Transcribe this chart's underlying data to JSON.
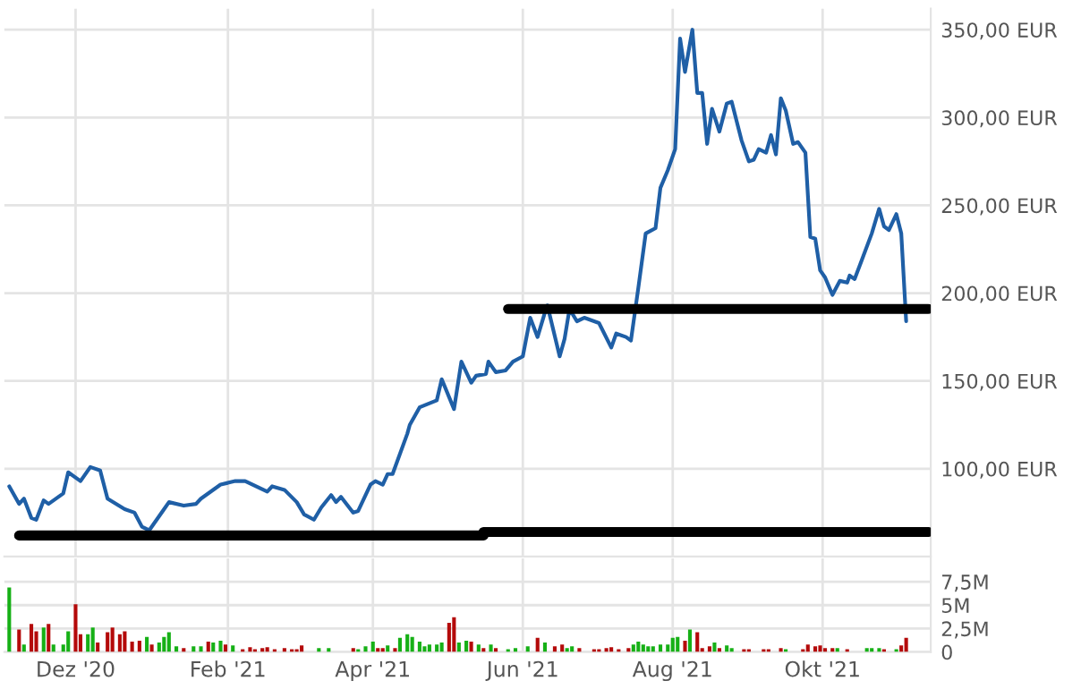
{
  "chart_data": [
    {
      "type": "line",
      "x": [
        "2020-11-04",
        "2020-11-08",
        "2020-11-10",
        "2020-11-13",
        "2020-11-15",
        "2020-11-18",
        "2020-11-20",
        "2020-11-26",
        "2020-11-28",
        "2020-12-03",
        "2020-12-07",
        "2020-12-11",
        "2020-12-14",
        "2020-12-21",
        "2020-12-25",
        "2020-12-28",
        "2020-12-31",
        "2021-01-06",
        "2021-01-08",
        "2021-01-14",
        "2021-01-19",
        "2021-01-21",
        "2021-01-29",
        "2021-02-04",
        "2021-02-08",
        "2021-02-17",
        "2021-02-19",
        "2021-02-24",
        "2021-03-01",
        "2021-03-04",
        "2021-03-08",
        "2021-03-11",
        "2021-03-15",
        "2021-03-17",
        "2021-03-19",
        "2021-03-24",
        "2021-03-26",
        "2021-03-31",
        "2021-04-02",
        "2021-04-05",
        "2021-04-07",
        "2021-04-09",
        "2021-04-15",
        "2021-04-16",
        "2021-04-20",
        "2021-04-27",
        "2021-04-29",
        "2021-05-04",
        "2021-05-07",
        "2021-05-11",
        "2021-05-13",
        "2021-05-17",
        "2021-05-18",
        "2021-05-21",
        "2021-05-25",
        "2021-05-28",
        "2021-06-01",
        "2021-06-04",
        "2021-06-07",
        "2021-06-10",
        "2021-06-11",
        "2021-06-16",
        "2021-06-18",
        "2021-06-20",
        "2021-06-23",
        "2021-06-26",
        "2021-07-02",
        "2021-07-07",
        "2021-07-09",
        "2021-07-13",
        "2021-07-15",
        "2021-07-18",
        "2021-07-21",
        "2021-07-25",
        "2021-07-27",
        "2021-07-30",
        "2021-08-02",
        "2021-08-04",
        "2021-08-06",
        "2021-08-09",
        "2021-08-11",
        "2021-08-13",
        "2021-08-15",
        "2021-08-17",
        "2021-08-20",
        "2021-08-23",
        "2021-08-25",
        "2021-08-29",
        "2021-09-01",
        "2021-09-03",
        "2021-09-05",
        "2021-09-08",
        "2021-09-10",
        "2021-09-12",
        "2021-09-14",
        "2021-09-16",
        "2021-09-19",
        "2021-09-21",
        "2021-09-24",
        "2021-09-26",
        "2021-09-28",
        "2021-09-30",
        "2021-10-02",
        "2021-10-05",
        "2021-10-08",
        "2021-10-11",
        "2021-10-12",
        "2021-10-14",
        "2021-10-17",
        "2021-10-21",
        "2021-10-24",
        "2021-10-26",
        "2021-10-28",
        "2021-10-31",
        "2021-11-02",
        "2021-11-04"
      ],
      "series": [
        {
          "color": "#1f5fa6",
          "values": [
            90,
            80,
            83,
            72,
            71,
            82,
            80,
            86,
            98,
            93,
            101,
            99,
            83,
            77,
            75,
            67,
            65,
            77,
            81,
            79,
            80,
            83,
            91,
            93,
            93,
            87,
            90,
            88,
            81,
            74,
            71,
            78,
            85,
            81,
            84,
            75,
            76,
            91,
            93,
            91,
            97,
            97,
            120,
            125,
            135,
            139,
            151,
            134,
            161,
            149,
            153,
            154,
            161,
            155,
            156,
            161,
            164,
            186,
            175,
            189,
            193,
            164,
            174,
            191,
            184,
            186,
            183,
            169,
            177,
            175,
            173,
            203,
            234,
            237,
            260,
            270,
            282,
            345,
            326,
            350,
            314,
            314,
            285,
            305,
            292,
            308,
            309,
            287,
            275,
            276,
            282,
            280,
            290,
            279,
            311,
            304,
            285,
            286,
            280,
            232,
            231,
            213,
            209,
            199,
            207,
            206,
            210,
            208,
            219,
            234,
            248,
            238,
            236,
            245,
            234,
            184
          ]
        },
        {
          "color": "#000000",
          "x": [
            "2021-05-26",
            "2021-11-13"
          ],
          "values": [
            191,
            191
          ]
        },
        {
          "color": "#000000",
          "x": [
            "2020-11-08",
            "2021-05-16",
            "2021-05-16",
            "2021-11-13"
          ],
          "values": [
            62,
            62,
            64,
            64
          ]
        }
      ],
      "xlim": [
        "2020-11-02",
        "2021-11-14"
      ],
      "xticks": [
        {
          "value": "2020-12-01",
          "label": null
        },
        {
          "value": "2021-02-01",
          "label": null
        },
        {
          "value": "2021-04-01",
          "label": null
        },
        {
          "value": "2021-06-01",
          "label": null
        },
        {
          "value": "2021-08-01",
          "label": null
        },
        {
          "value": "2021-10-01",
          "label": null
        }
      ],
      "ylim": [
        50,
        362
      ],
      "yticks": [
        {
          "value": 100,
          "label": "100,00 EUR"
        },
        {
          "value": 150,
          "label": "150,00 EUR"
        },
        {
          "value": 200,
          "label": "200,00 EUR"
        },
        {
          "value": 250,
          "label": "250,00 EUR"
        },
        {
          "value": 300,
          "label": "300,00 EUR"
        },
        {
          "value": 350,
          "label": "350,00 EUR"
        }
      ],
      "grid": true,
      "tick_labels": "y"
    },
    {
      "type": "bar",
      "x": [
        "2020-11-04",
        "2020-11-08",
        "2020-11-10",
        "2020-11-13",
        "2020-11-15",
        "2020-11-18",
        "2020-11-20",
        "2020-11-22",
        "2020-11-26",
        "2020-11-28",
        "2020-12-01",
        "2020-12-03",
        "2020-12-06",
        "2020-12-08",
        "2020-12-10",
        "2020-12-14",
        "2020-12-16",
        "2020-12-19",
        "2020-12-21",
        "2020-12-24",
        "2020-12-27",
        "2020-12-30",
        "2021-01-01",
        "2021-01-04",
        "2021-01-06",
        "2021-01-08",
        "2021-01-11",
        "2021-01-14",
        "2021-01-18",
        "2021-01-21",
        "2021-01-24",
        "2021-01-26",
        "2021-01-29",
        "2021-01-31",
        "2021-02-03",
        "2021-02-07",
        "2021-02-10",
        "2021-02-12",
        "2021-02-15",
        "2021-02-17",
        "2021-02-20",
        "2021-02-24",
        "2021-02-27",
        "2021-03-01",
        "2021-03-03",
        "2021-03-10",
        "2021-03-14",
        "2021-03-24",
        "2021-03-26",
        "2021-03-29",
        "2021-04-01",
        "2021-04-03",
        "2021-04-05",
        "2021-04-07",
        "2021-04-10",
        "2021-04-12",
        "2021-04-15",
        "2021-04-17",
        "2021-04-20",
        "2021-04-22",
        "2021-04-24",
        "2021-04-27",
        "2021-04-29",
        "2021-05-02",
        "2021-05-04",
        "2021-05-06",
        "2021-05-09",
        "2021-05-11",
        "2021-05-14",
        "2021-05-16",
        "2021-05-19",
        "2021-05-21",
        "2021-05-26",
        "2021-05-29",
        "2021-06-03",
        "2021-06-07",
        "2021-06-10",
        "2021-06-14",
        "2021-06-17",
        "2021-06-19",
        "2021-06-21",
        "2021-06-24",
        "2021-06-30",
        "2021-07-02",
        "2021-07-05",
        "2021-07-07",
        "2021-07-10",
        "2021-07-14",
        "2021-07-16",
        "2021-07-18",
        "2021-07-20",
        "2021-07-22",
        "2021-07-24",
        "2021-07-27",
        "2021-07-30",
        "2021-08-01",
        "2021-08-03",
        "2021-08-06",
        "2021-08-08",
        "2021-08-11",
        "2021-08-13",
        "2021-08-16",
        "2021-08-18",
        "2021-08-20",
        "2021-08-23",
        "2021-08-25",
        "2021-08-30",
        "2021-09-01",
        "2021-09-07",
        "2021-09-09",
        "2021-09-14",
        "2021-09-16",
        "2021-09-23",
        "2021-09-25",
        "2021-09-28",
        "2021-09-30",
        "2021-10-02",
        "2021-10-05",
        "2021-10-07",
        "2021-10-11",
        "2021-10-19",
        "2021-10-21",
        "2021-10-24",
        "2021-10-26",
        "2021-10-31",
        "2021-11-02",
        "2021-11-04"
      ],
      "series": [
        {
          "values": [
            6.9,
            2.4,
            0.8,
            3.0,
            2.2,
            2.6,
            3.0,
            0.8,
            0.8,
            2.2,
            5.1,
            1.9,
            1.9,
            2.6,
            1.0,
            2.1,
            2.6,
            1.9,
            2.2,
            1.1,
            1.2,
            1.6,
            0.8,
            1.0,
            1.6,
            2.1,
            0.6,
            0.4,
            0.6,
            0.6,
            1.1,
            1.0,
            1.2,
            0.8,
            0.7,
            0.3,
            0.5,
            0.3,
            0.4,
            0.5,
            0.3,
            0.4,
            0.3,
            0.3,
            0.7,
            0.4,
            0.4,
            0.4,
            0.3,
            0.6,
            1.1,
            0.4,
            0.4,
            0.7,
            0.4,
            1.5,
            1.9,
            1.6,
            1.1,
            0.6,
            0.8,
            0.8,
            1.0,
            3.1,
            3.7,
            1.0,
            1.2,
            1.1,
            0.8,
            0.4,
            0.8,
            0.4,
            0.3,
            0.4,
            0.6,
            1.5,
            1.0,
            0.6,
            0.8,
            0.4,
            0.6,
            0.4,
            0.3,
            0.3,
            0.4,
            0.5,
            0.3,
            0.4,
            0.8,
            1.1,
            0.8,
            0.6,
            0.6,
            0.8,
            0.8,
            1.5,
            1.6,
            1.2,
            2.4,
            2.1,
            0.4,
            0.6,
            1.0,
            0.4,
            0.7,
            0.4,
            0.3,
            0.3,
            0.3,
            0.3,
            0.4,
            0.3,
            0.3,
            0.8,
            0.6,
            0.7,
            0.4,
            0.4,
            0.4,
            0.3,
            0.4,
            0.4,
            0.4,
            0.3,
            0.3,
            0.7,
            1.5
          ],
          "colors": [
            "#16b016",
            "#b40a0a",
            "#16b016",
            "#b40a0a",
            "#b40a0a",
            "#16b016",
            "#b40a0a",
            "#16b016",
            "#16b016",
            "#16b016",
            "#b40a0a",
            "#b40a0a",
            "#16b016",
            "#16b016",
            "#b40a0a",
            "#b40a0a",
            "#b40a0a",
            "#b40a0a",
            "#b40a0a",
            "#b40a0a",
            "#b40a0a",
            "#16b016",
            "#b40a0a",
            "#16b016",
            "#16b016",
            "#16b016",
            "#16b016",
            "#b40a0a",
            "#16b016",
            "#16b016",
            "#b40a0a",
            "#16b016",
            "#16b016",
            "#b40a0a",
            "#16b016",
            "#b40a0a",
            "#b40a0a",
            "#b40a0a",
            "#b40a0a",
            "#b40a0a",
            "#b40a0a",
            "#b40a0a",
            "#b40a0a",
            "#b40a0a",
            "#b40a0a",
            "#16b016",
            "#16b016",
            "#b40a0a",
            "#16b016",
            "#16b016",
            "#16b016",
            "#b40a0a",
            "#b40a0a",
            "#16b016",
            "#b40a0a",
            "#16b016",
            "#16b016",
            "#16b016",
            "#16b016",
            "#16b016",
            "#16b016",
            "#16b016",
            "#16b016",
            "#b40a0a",
            "#b40a0a",
            "#16b016",
            "#16b016",
            "#b40a0a",
            "#16b016",
            "#b40a0a",
            "#16b016",
            "#b40a0a",
            "#16b016",
            "#16b016",
            "#16b016",
            "#b40a0a",
            "#16b016",
            "#b40a0a",
            "#b40a0a",
            "#16b016",
            "#16b016",
            "#b40a0a",
            "#b40a0a",
            "#b40a0a",
            "#b40a0a",
            "#b40a0a",
            "#b40a0a",
            "#b40a0a",
            "#16b016",
            "#16b016",
            "#16b016",
            "#16b016",
            "#16b016",
            "#16b016",
            "#16b016",
            "#16b016",
            "#16b016",
            "#b40a0a",
            "#16b016",
            "#b40a0a",
            "#b40a0a",
            "#b40a0a",
            "#16b016",
            "#b40a0a",
            "#16b016",
            "#16b016",
            "#b40a0a",
            "#b40a0a",
            "#b40a0a",
            "#b40a0a",
            "#b40a0a",
            "#16b016",
            "#b40a0a",
            "#b40a0a",
            "#b40a0a",
            "#b40a0a",
            "#b40a0a",
            "#b40a0a",
            "#16b016",
            "#b40a0a",
            "#16b016",
            "#16b016",
            "#16b016",
            "#b40a0a",
            "#16b016",
            "#b40a0a",
            "#b40a0a"
          ]
        }
      ],
      "xlim": [
        "2020-11-02",
        "2021-11-14"
      ],
      "xticks": [
        {
          "value": "2020-12-01",
          "label": "Dez '20"
        },
        {
          "value": "2021-02-01",
          "label": "Feb '21"
        },
        {
          "value": "2021-04-01",
          "label": "Apr '21"
        },
        {
          "value": "2021-06-01",
          "label": "Jun '21"
        },
        {
          "value": "2021-08-01",
          "label": "Aug '21"
        },
        {
          "value": "2021-10-01",
          "label": "Okt '21"
        }
      ],
      "ylim": [
        0,
        10
      ],
      "yticks": [
        0,
        {
          "value": 2.5,
          "label": "2,5M"
        },
        {
          "value": 5,
          "label": "5M"
        },
        {
          "value": 7.5,
          "label": "7,5M"
        }
      ],
      "grid": true
    }
  ]
}
